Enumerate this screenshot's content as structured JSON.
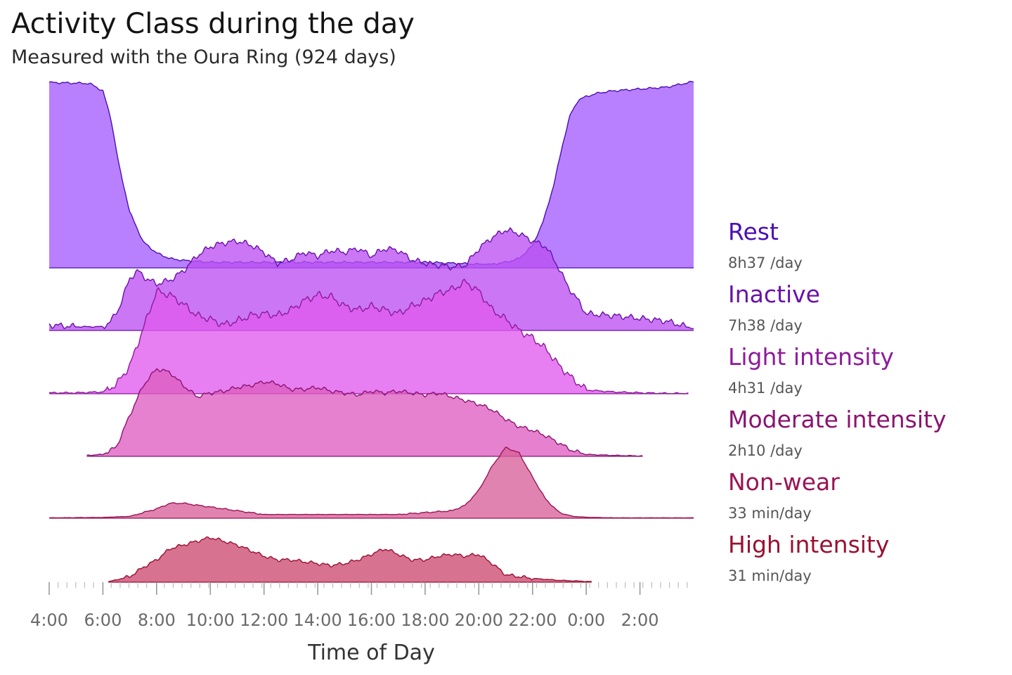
{
  "header": {
    "title": "Activity Class during the day",
    "subtitle": "Measured with the Oura Ring (924 days)"
  },
  "chart_data": {
    "type": "area",
    "layout": "ridgeline",
    "title": "Activity Class during the day",
    "subtitle": "Measured with the Oura Ring (924 days)",
    "xlabel": "Time of Day",
    "ylabel": "",
    "x_unit": "hours since 4:00",
    "xlim": [
      0,
      24
    ],
    "x_ticks": [
      {
        "x": 0,
        "label": "4:00"
      },
      {
        "x": 2,
        "label": "6:00"
      },
      {
        "x": 4,
        "label": "8:00"
      },
      {
        "x": 6,
        "label": "10:00"
      },
      {
        "x": 8,
        "label": "12:00"
      },
      {
        "x": 10,
        "label": "14:00"
      },
      {
        "x": 12,
        "label": "16:00"
      },
      {
        "x": 14,
        "label": "18:00"
      },
      {
        "x": 16,
        "label": "20:00"
      },
      {
        "x": 18,
        "label": "22:00"
      },
      {
        "x": 20,
        "label": "0:00"
      },
      {
        "x": 22,
        "label": "2:00"
      }
    ],
    "minor_tick_step": 0.33,
    "grid": false,
    "legend_position": "right",
    "series": [
      {
        "name": "Rest",
        "summary": "8h37 /day",
        "color": "#4b0fb3",
        "fill": "#a45cff",
        "ridge": 0,
        "x": [
          0,
          1.5,
          2,
          2.3,
          2.6,
          3,
          3.5,
          4,
          4.5,
          5,
          6,
          8,
          10,
          12,
          14,
          15,
          16,
          16.5,
          17,
          17.5,
          18,
          18.4,
          18.8,
          19.1,
          19.4,
          19.7,
          20,
          20.5,
          21,
          22,
          23,
          24
        ],
        "values": [
          0.995,
          0.99,
          0.95,
          0.8,
          0.55,
          0.3,
          0.14,
          0.08,
          0.05,
          0.04,
          0.03,
          0.03,
          0.03,
          0.03,
          0.03,
          0.025,
          0.02,
          0.02,
          0.03,
          0.05,
          0.12,
          0.25,
          0.45,
          0.65,
          0.82,
          0.9,
          0.92,
          0.94,
          0.95,
          0.96,
          0.97,
          1.0
        ]
      },
      {
        "name": "Inactive",
        "summary": "7h38 /day",
        "color": "#6a12a8",
        "fill": "#bb50f2",
        "ridge": 1,
        "x": [
          0,
          1,
          2,
          2.3,
          2.6,
          3,
          3.3,
          3.6,
          4,
          4.5,
          5,
          5.5,
          6,
          6.5,
          7,
          7.5,
          8,
          8.5,
          9,
          9.5,
          10,
          10.5,
          11,
          11.5,
          12,
          12.5,
          13,
          13.5,
          14,
          14.5,
          15,
          15.5,
          16,
          16.5,
          17,
          17.5,
          18,
          18.5,
          19,
          19.3,
          19.7,
          20,
          21,
          22,
          23,
          24
        ],
        "values": [
          0.03,
          0.02,
          0.02,
          0.05,
          0.12,
          0.28,
          0.32,
          0.28,
          0.25,
          0.27,
          0.32,
          0.4,
          0.45,
          0.47,
          0.48,
          0.46,
          0.42,
          0.36,
          0.38,
          0.42,
          0.4,
          0.43,
          0.42,
          0.44,
          0.4,
          0.44,
          0.43,
          0.38,
          0.36,
          0.35,
          0.34,
          0.35,
          0.44,
          0.5,
          0.54,
          0.52,
          0.48,
          0.45,
          0.33,
          0.24,
          0.16,
          0.09,
          0.08,
          0.065,
          0.05,
          0.01
        ]
      },
      {
        "name": "Light intensity",
        "summary": "4h31 /day",
        "color": "#8e1a9c",
        "fill": "#e05aee",
        "ridge": 2,
        "x": [
          0,
          1,
          2,
          2.5,
          3,
          3.5,
          4,
          4.5,
          5,
          5.5,
          6,
          6.5,
          7,
          7.5,
          8,
          8.5,
          9,
          9.5,
          10,
          10.5,
          11,
          11.5,
          12,
          12.5,
          13,
          13.5,
          14,
          14.5,
          15,
          15.5,
          16,
          16.5,
          17,
          17.5,
          18,
          18.5,
          19,
          19.5,
          20,
          21,
          22,
          23,
          23.8
        ],
        "values": [
          0.005,
          0.005,
          0.01,
          0.05,
          0.15,
          0.35,
          0.55,
          0.53,
          0.48,
          0.42,
          0.4,
          0.37,
          0.39,
          0.42,
          0.43,
          0.42,
          0.45,
          0.5,
          0.53,
          0.52,
          0.47,
          0.45,
          0.47,
          0.45,
          0.43,
          0.47,
          0.5,
          0.54,
          0.56,
          0.6,
          0.55,
          0.45,
          0.4,
          0.34,
          0.3,
          0.24,
          0.15,
          0.08,
          0.02,
          0.01,
          0.005,
          0.002,
          0.002
        ]
      },
      {
        "name": "Moderate intensity",
        "summary": "2h10 /day",
        "color": "#8a1470",
        "fill": "#de5dc0",
        "ridge": 3,
        "x": [
          1.4,
          2,
          2.5,
          3,
          3.5,
          4,
          4.5,
          5,
          5.5,
          6,
          6.5,
          7,
          7.5,
          8,
          8.5,
          9,
          9.5,
          10,
          10.5,
          11,
          11.5,
          12,
          12.5,
          13,
          13.5,
          14,
          14.5,
          15,
          15.5,
          16,
          16.5,
          17,
          17.5,
          18,
          18.5,
          19,
          19.5,
          20,
          21,
          22.1
        ],
        "values": [
          0.005,
          0.01,
          0.05,
          0.22,
          0.38,
          0.47,
          0.45,
          0.38,
          0.32,
          0.34,
          0.35,
          0.37,
          0.38,
          0.4,
          0.39,
          0.36,
          0.36,
          0.37,
          0.35,
          0.34,
          0.33,
          0.35,
          0.34,
          0.35,
          0.34,
          0.33,
          0.34,
          0.32,
          0.3,
          0.28,
          0.25,
          0.2,
          0.16,
          0.14,
          0.11,
          0.07,
          0.03,
          0.01,
          0.005,
          0.002
        ]
      },
      {
        "name": "Non-wear",
        "summary": "33 min/day",
        "color": "#9a1454",
        "fill": "#d9609a",
        "ridge": 4,
        "x": [
          0,
          2,
          3,
          3.5,
          4,
          4.5,
          5,
          6,
          7,
          8,
          9,
          10,
          11,
          12,
          13,
          14,
          15,
          15.5,
          16,
          16.5,
          17,
          17.5,
          18,
          18.5,
          19,
          19.5,
          20,
          21,
          22,
          23,
          24
        ],
        "values": [
          0.002,
          0.004,
          0.01,
          0.03,
          0.05,
          0.08,
          0.08,
          0.06,
          0.04,
          0.02,
          0.02,
          0.02,
          0.02,
          0.02,
          0.02,
          0.03,
          0.04,
          0.07,
          0.15,
          0.28,
          0.38,
          0.35,
          0.22,
          0.1,
          0.03,
          0.01,
          0.005,
          0.002,
          0.002,
          0.002,
          0.002
        ]
      },
      {
        "name": "High intensity",
        "summary": "31 min/day",
        "color": "#9a1030",
        "fill": "#cc4a72",
        "ridge": 5,
        "x": [
          2.2,
          3,
          3.5,
          4,
          4.5,
          5,
          5.5,
          6,
          6.5,
          7,
          7.5,
          8,
          8.5,
          9,
          9.5,
          10,
          10.5,
          11,
          11.5,
          12,
          12.5,
          13,
          13.5,
          14,
          14.5,
          15,
          15.5,
          16,
          16.5,
          17,
          18,
          19,
          20.2
        ],
        "values": [
          0.002,
          0.03,
          0.08,
          0.12,
          0.18,
          0.2,
          0.22,
          0.24,
          0.22,
          0.2,
          0.17,
          0.14,
          0.12,
          0.12,
          0.11,
          0.1,
          0.09,
          0.1,
          0.12,
          0.15,
          0.18,
          0.15,
          0.12,
          0.12,
          0.14,
          0.15,
          0.14,
          0.15,
          0.1,
          0.04,
          0.02,
          0.01,
          0.003
        ]
      }
    ]
  }
}
